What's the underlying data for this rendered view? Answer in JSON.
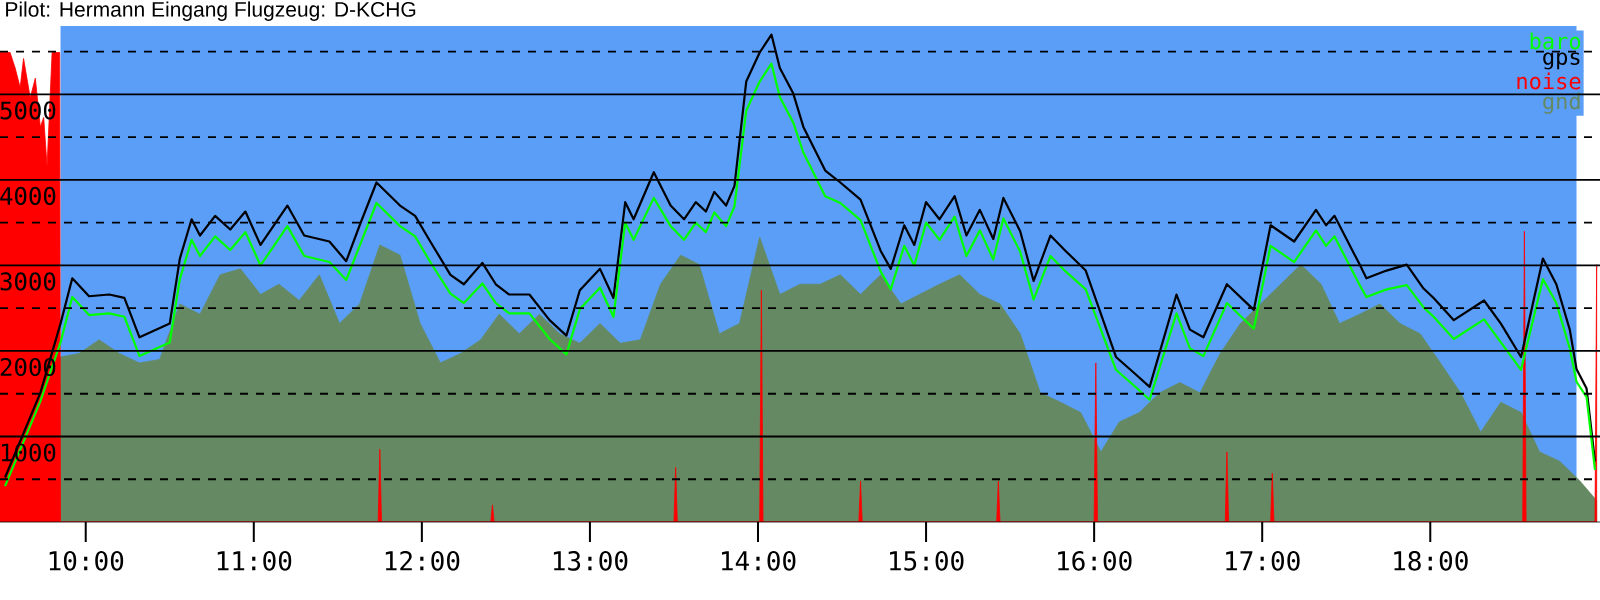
{
  "chart_data": {
    "type": "line",
    "title": "Pilot: Hermann Eingang Flugzeug: D-KCHG",
    "xlim": [
      9.49,
      19.01
    ],
    "ylim": [
      0,
      5800
    ],
    "xticks": [
      {
        "value": 10,
        "label": "10:00"
      },
      {
        "value": 11,
        "label": "11:00"
      },
      {
        "value": 12,
        "label": "12:00"
      },
      {
        "value": 13,
        "label": "13:00"
      },
      {
        "value": 14,
        "label": "14:00"
      },
      {
        "value": 15,
        "label": "15:00"
      },
      {
        "value": 16,
        "label": "16:00"
      },
      {
        "value": 17,
        "label": "17:00"
      },
      {
        "value": 18,
        "label": "18:00"
      }
    ],
    "yticks": [
      {
        "value": 500,
        "label": null
      },
      1000,
      {
        "value": 1500,
        "label": null
      },
      2000,
      {
        "value": 2500,
        "label": null
      },
      3000,
      {
        "value": 3500,
        "label": null
      },
      4000,
      {
        "value": 4500,
        "label": null
      },
      5000,
      {
        "value": 5500,
        "label": null
      }
    ],
    "grid": "y",
    "legend": "top right",
    "bands": [
      {
        "axis": "x",
        "from": 9.85,
        "to": 18.87,
        "color": "#5a9ef8"
      }
    ],
    "x": [
      9.52,
      9.73,
      9.85,
      9.92,
      10.02,
      10.14,
      10.23,
      10.32,
      10.5,
      10.56,
      10.63,
      10.68,
      10.77,
      10.86,
      10.95,
      11.04,
      11.2,
      11.3,
      11.45,
      11.55,
      11.63,
      11.73,
      11.87,
      11.96,
      12.05,
      12.17,
      12.25,
      12.36,
      12.44,
      12.52,
      12.64,
      12.76,
      12.86,
      12.94,
      13.06,
      13.14,
      13.21,
      13.26,
      13.38,
      13.48,
      13.56,
      13.63,
      13.69,
      13.74,
      13.81,
      13.86,
      13.93,
      14.01,
      14.08,
      14.13,
      14.21,
      14.27,
      14.4,
      14.49,
      14.61,
      14.73,
      14.79,
      14.87,
      14.93,
      15.0,
      15.08,
      15.17,
      15.24,
      15.32,
      15.4,
      15.46,
      15.56,
      15.64,
      15.74,
      15.83,
      15.95,
      16.13,
      16.24,
      16.33,
      16.49,
      16.57,
      16.65,
      16.79,
      16.95,
      17.05,
      17.19,
      17.32,
      17.38,
      17.43,
      17.58,
      17.62,
      17.74,
      17.86,
      17.96,
      18.02,
      18.14,
      18.32,
      18.42,
      18.54,
      18.67,
      18.75,
      18.83,
      18.87,
      18.93,
      18.98
    ],
    "series": [
      {
        "name": "baro",
        "color": "#00ff00",
        "values": [
          420,
          1410,
          2100,
          2630,
          2420,
          2440,
          2400,
          1940,
          2100,
          2840,
          3300,
          3110,
          3340,
          3180,
          3390,
          3000,
          3460,
          3110,
          3040,
          2830,
          3230,
          3730,
          3460,
          3340,
          3040,
          2670,
          2560,
          2790,
          2560,
          2440,
          2440,
          2140,
          1960,
          2490,
          2740,
          2400,
          3500,
          3300,
          3790,
          3460,
          3300,
          3500,
          3390,
          3620,
          3460,
          3690,
          4810,
          5150,
          5360,
          4970,
          4670,
          4320,
          3810,
          3730,
          3530,
          2930,
          2720,
          3230,
          3000,
          3500,
          3300,
          3570,
          3110,
          3410,
          3070,
          3550,
          3160,
          2600,
          3110,
          2930,
          2720,
          1780,
          1590,
          1430,
          2440,
          2030,
          1940,
          2560,
          2260,
          3230,
          3040,
          3410,
          3230,
          3340,
          2770,
          2630,
          2720,
          2770,
          2510,
          2400,
          2140,
          2370,
          2100,
          1780,
          2840,
          2560,
          2030,
          1640,
          1460,
          610
        ]
      },
      {
        "name": "gps",
        "color": "#000000",
        "values": [
          520,
          1510,
          2320,
          2850,
          2640,
          2660,
          2620,
          2160,
          2320,
          3080,
          3540,
          3350,
          3580,
          3420,
          3630,
          3240,
          3700,
          3350,
          3280,
          3050,
          3470,
          3970,
          3700,
          3580,
          3280,
          2890,
          2780,
          3030,
          2780,
          2660,
          2660,
          2360,
          2180,
          2710,
          2960,
          2620,
          3740,
          3540,
          4090,
          3700,
          3540,
          3740,
          3630,
          3860,
          3700,
          3930,
          5150,
          5490,
          5700,
          5310,
          5010,
          4620,
          4110,
          3970,
          3770,
          3170,
          2960,
          3470,
          3240,
          3740,
          3540,
          3810,
          3350,
          3650,
          3310,
          3790,
          3400,
          2820,
          3350,
          3170,
          2940,
          1930,
          1740,
          1580,
          2660,
          2250,
          2160,
          2780,
          2480,
          3470,
          3280,
          3650,
          3470,
          3580,
          3010,
          2850,
          2940,
          3010,
          2730,
          2620,
          2360,
          2590,
          2320,
          1930,
          3080,
          2780,
          2250,
          1790,
          1560,
          710
        ]
      },
      {
        "name": "noise",
        "color": "#ff0000",
        "type": "area",
        "x": [
          9.49,
          9.5,
          9.55,
          9.58,
          9.61,
          9.63,
          9.67,
          9.7,
          9.73,
          9.75,
          9.77,
          9.8,
          9.83,
          9.845,
          9.85,
          11.74,
          11.75,
          11.76,
          12.41,
          12.42,
          12.43,
          13.5,
          13.51,
          13.52,
          14.01,
          14.02,
          14.03,
          14.6,
          14.61,
          14.62,
          15.42,
          15.43,
          15.44,
          16.0,
          16.01,
          16.02,
          16.78,
          16.79,
          16.8,
          17.05,
          17.06,
          17.07,
          18.55,
          18.56,
          18.57,
          18.98,
          18.99
        ],
        "values": [
          5490,
          5490,
          5490,
          5310,
          5080,
          5420,
          4960,
          5190,
          4620,
          4730,
          4160,
          5490,
          5490,
          5490,
          0,
          0,
          850,
          0,
          0,
          200,
          0,
          0,
          640,
          0,
          0,
          2710,
          0,
          0,
          480,
          0,
          0,
          480,
          0,
          0,
          1860,
          0,
          0,
          820,
          0,
          0,
          570,
          0,
          0,
          3400,
          0,
          0,
          3010
        ]
      },
      {
        "name": "gnd",
        "color": "#658a63",
        "type": "area",
        "x": [
          9.49,
          9.85,
          9.96,
          10.08,
          10.2,
          10.32,
          10.44,
          10.56,
          10.68,
          10.8,
          10.92,
          11.04,
          11.15,
          11.27,
          11.39,
          11.51,
          11.63,
          11.75,
          11.87,
          11.99,
          12.11,
          12.23,
          12.35,
          12.46,
          12.58,
          12.7,
          12.82,
          12.94,
          13.06,
          13.18,
          13.3,
          13.42,
          13.54,
          13.65,
          13.77,
          13.89,
          14.01,
          14.13,
          14.25,
          14.37,
          14.49,
          14.61,
          14.73,
          14.85,
          14.96,
          15.08,
          15.2,
          15.32,
          15.44,
          15.56,
          15.68,
          15.8,
          15.92,
          16.04,
          16.15,
          16.27,
          16.39,
          16.51,
          16.63,
          16.75,
          16.87,
          16.99,
          17.11,
          17.23,
          17.35,
          17.46,
          17.58,
          17.7,
          17.82,
          17.94,
          18.06,
          18.18,
          18.3,
          18.42,
          18.54,
          18.65,
          18.77,
          18.89,
          18.99
        ],
        "values": [
          1930,
          1930,
          1970,
          2130,
          1970,
          1860,
          1900,
          2550,
          2430,
          2890,
          2960,
          2660,
          2780,
          2590,
          2890,
          2320,
          2550,
          3240,
          3120,
          2320,
          1860,
          1970,
          2130,
          2430,
          2200,
          2430,
          2200,
          2090,
          2320,
          2090,
          2130,
          2780,
          3120,
          3010,
          2200,
          2320,
          3330,
          2660,
          2780,
          2780,
          2890,
          2660,
          2890,
          2550,
          2660,
          2780,
          2890,
          2660,
          2550,
          2200,
          1510,
          1400,
          1280,
          820,
          1170,
          1280,
          1510,
          1630,
          1510,
          1970,
          2320,
          2550,
          2780,
          3010,
          2780,
          2320,
          2430,
          2550,
          2320,
          2200,
          1860,
          1510,
          1050,
          1400,
          1280,
          820,
          710,
          480,
          250
        ]
      }
    ]
  }
}
